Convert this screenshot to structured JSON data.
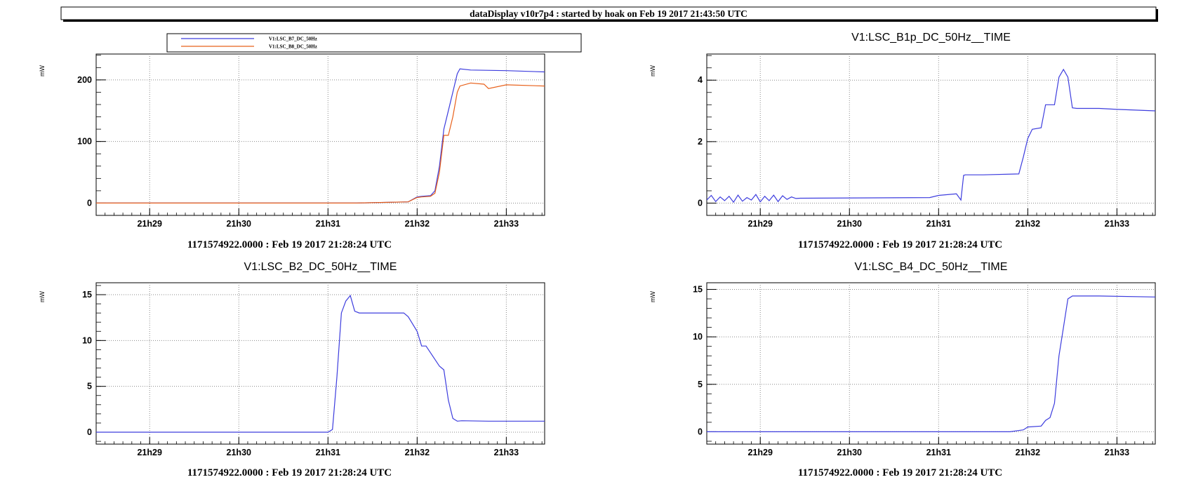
{
  "header": {
    "title": "dataDisplay v10r7p4 : started by hoak on Feb 19 2017 21:43:50 UTC"
  },
  "colors": {
    "blue": "#3d3dde",
    "orange": "#e8601a",
    "grid": "#8a8a8a"
  },
  "chart_data": [
    {
      "type": "line",
      "title": "",
      "xlabel": "1171574922.0000 : Feb 19 2017 21:28:24 UTC",
      "ylabel": "mW",
      "xlim": [
        28.4,
        33.43
      ],
      "ylim": [
        -20,
        242
      ],
      "xticks": [
        "21h29",
        "21h30",
        "21h31",
        "21h32",
        "21h33"
      ],
      "yticks": [
        0,
        100,
        200
      ],
      "grid": true,
      "legend": {
        "placement": "top",
        "entries": [
          "V1:LSC_B7_DC_50Hz",
          "V1:LSC_B8_DC_50Hz"
        ]
      },
      "series": [
        {
          "name": "V1:LSC_B7_DC_50Hz",
          "color": "blue",
          "x": [
            28.4,
            31.3,
            31.9,
            32.0,
            32.05,
            32.15,
            32.2,
            32.25,
            32.3,
            32.35,
            32.4,
            32.45,
            32.48,
            32.6,
            33.0,
            33.43
          ],
          "y": [
            0,
            0,
            2,
            10,
            11,
            12,
            20,
            60,
            120,
            150,
            180,
            210,
            218,
            216,
            215,
            213
          ]
        },
        {
          "name": "V1:LSC_B8_DC_50Hz",
          "color": "orange",
          "x": [
            28.4,
            31.3,
            31.9,
            32.0,
            32.05,
            32.15,
            32.2,
            32.25,
            32.3,
            32.35,
            32.4,
            32.45,
            32.48,
            32.6,
            32.75,
            32.8,
            33.0,
            33.43
          ],
          "y": [
            0,
            0,
            2,
            9,
            10,
            11,
            16,
            50,
            110,
            110,
            140,
            180,
            190,
            195,
            193,
            186,
            192,
            190
          ]
        }
      ]
    },
    {
      "type": "line",
      "title": "V1:LSC_B1p_DC_50Hz__TIME",
      "xlabel": "1171574922.0000 : Feb 19 2017 21:28:24 UTC",
      "ylabel": "mW",
      "xlim": [
        28.4,
        33.43
      ],
      "ylim": [
        -0.4,
        4.85
      ],
      "xticks": [
        "21h29",
        "21h30",
        "21h31",
        "21h32",
        "21h33"
      ],
      "yticks": [
        0,
        2,
        4
      ],
      "grid": true,
      "series": [
        {
          "color": "blue",
          "x": [
            28.4,
            28.45,
            28.5,
            28.55,
            28.6,
            28.65,
            28.7,
            28.75,
            28.8,
            28.85,
            28.9,
            28.95,
            29.0,
            29.05,
            29.1,
            29.15,
            29.2,
            29.25,
            29.3,
            29.35,
            29.4,
            29.45,
            30.9,
            31.0,
            31.2,
            31.25,
            31.28,
            31.3,
            31.5,
            31.9,
            31.95,
            32.0,
            32.05,
            32.15,
            32.2,
            32.3,
            32.35,
            32.4,
            32.45,
            32.5,
            32.55,
            32.8,
            33.0,
            33.43
          ],
          "y": [
            0.1,
            0.25,
            0.05,
            0.2,
            0.08,
            0.22,
            0.03,
            0.26,
            0.06,
            0.18,
            0.1,
            0.28,
            0.04,
            0.22,
            0.08,
            0.26,
            0.05,
            0.24,
            0.12,
            0.2,
            0.15,
            0.16,
            0.18,
            0.25,
            0.3,
            0.1,
            0.9,
            0.92,
            0.92,
            0.95,
            1.5,
            2.1,
            2.4,
            2.45,
            3.2,
            3.2,
            4.1,
            4.35,
            4.1,
            3.1,
            3.08,
            3.08,
            3.05,
            3.0
          ]
        }
      ]
    },
    {
      "type": "line",
      "title": "V1:LSC_B2_DC_50Hz__TIME",
      "xlabel": "1171574922.0000 : Feb 19 2017 21:28:24 UTC",
      "ylabel": "mW",
      "xlim": [
        28.4,
        33.43
      ],
      "ylim": [
        -1.3,
        16.3
      ],
      "xticks": [
        "21h29",
        "21h30",
        "21h31",
        "21h32",
        "21h33"
      ],
      "yticks": [
        0,
        5,
        10,
        15
      ],
      "grid": true,
      "series": [
        {
          "color": "blue",
          "x": [
            28.4,
            31.0,
            31.05,
            31.1,
            31.15,
            31.2,
            31.25,
            31.3,
            31.35,
            31.6,
            31.85,
            31.9,
            32.0,
            32.05,
            32.1,
            32.25,
            32.3,
            32.35,
            32.4,
            32.45,
            32.5,
            32.8,
            33.43
          ],
          "y": [
            0,
            0,
            0.3,
            6,
            13,
            14.3,
            14.9,
            13.2,
            13.0,
            13.0,
            13.0,
            12.6,
            11.0,
            9.4,
            9.4,
            7.2,
            6.8,
            3.5,
            1.5,
            1.2,
            1.25,
            1.2,
            1.2
          ]
        }
      ]
    },
    {
      "type": "line",
      "title": "V1:LSC_B4_DC_50Hz__TIME",
      "xlabel": "1171574922.0000 : Feb 19 2017 21:28:24 UTC",
      "ylabel": "mW",
      "xlim": [
        28.4,
        33.43
      ],
      "ylim": [
        -1.3,
        15.7
      ],
      "xticks": [
        "21h29",
        "21h30",
        "21h31",
        "21h32",
        "21h33"
      ],
      "yticks": [
        0,
        5,
        10,
        15
      ],
      "grid": true,
      "series": [
        {
          "color": "blue",
          "x": [
            28.4,
            31.8,
            31.95,
            32.0,
            32.15,
            32.2,
            32.25,
            32.3,
            32.35,
            32.4,
            32.45,
            32.5,
            32.8,
            33.43
          ],
          "y": [
            0,
            0,
            0.2,
            0.5,
            0.6,
            1.2,
            1.5,
            3,
            8,
            11,
            14,
            14.3,
            14.3,
            14.2
          ]
        }
      ]
    }
  ]
}
